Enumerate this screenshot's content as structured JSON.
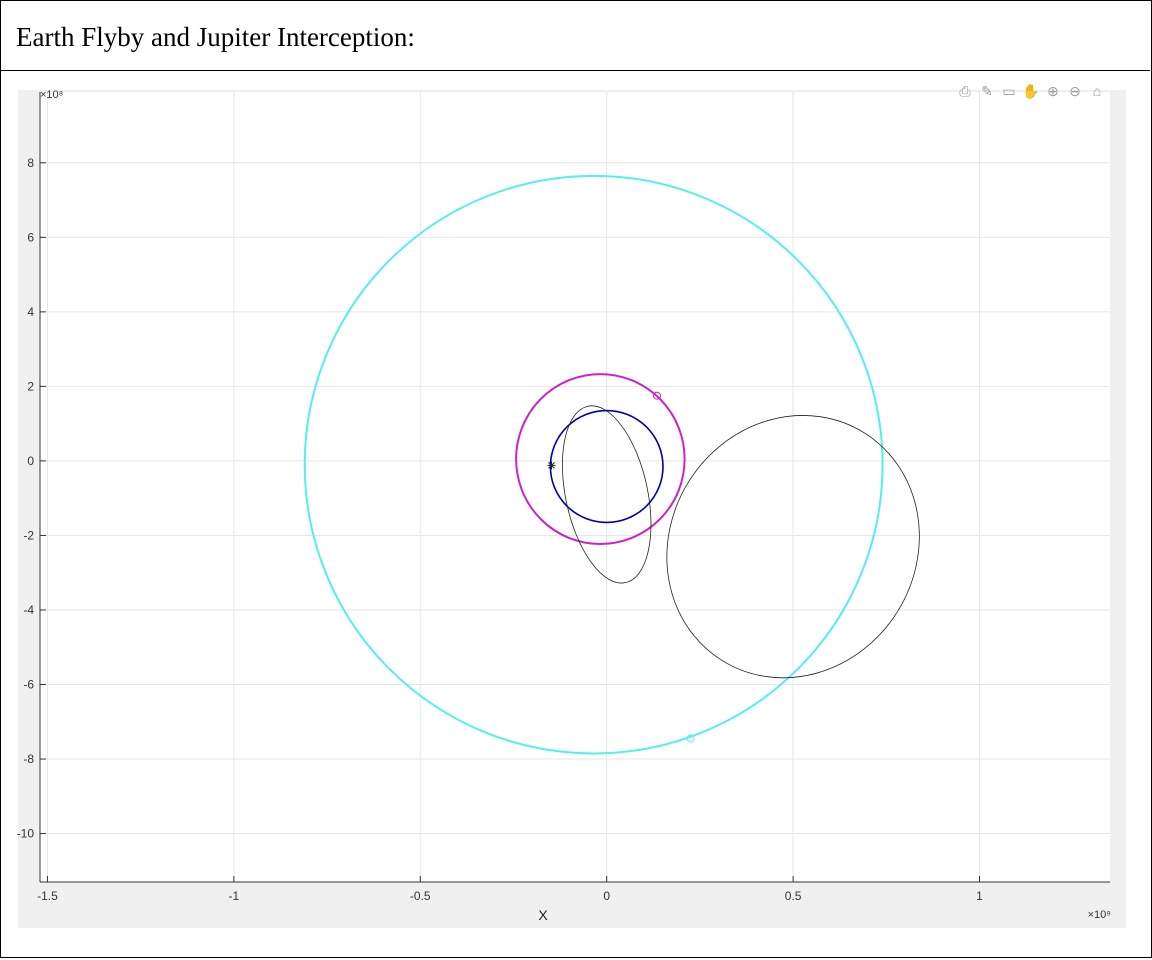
{
  "page": {
    "title": "Earth Flyby and Jupiter Interception:"
  },
  "toolbar": {
    "icons": [
      "export-icon",
      "brush-icon",
      "datatip-icon",
      "pan-icon",
      "zoom-in-icon",
      "zoom-out-icon",
      "home-icon"
    ]
  },
  "chart_data": {
    "type": "line",
    "title": "",
    "xlabel": "X",
    "ylabel": "",
    "x_exponent_label": "×10⁹",
    "y_exponent_label": "×10⁸",
    "xlim": [
      -1.52,
      1.35
    ],
    "ylim": [
      -11.3,
      9.9
    ],
    "x_ticks": [
      -1.5,
      -1,
      -0.5,
      0,
      0.5,
      1
    ],
    "x_tick_labels": [
      "-1.5",
      "-1",
      "-0.5",
      "0",
      "0.5",
      "1"
    ],
    "y_ticks": [
      -10,
      -8,
      -6,
      -4,
      -2,
      0,
      2,
      4,
      6,
      8
    ],
    "y_tick_labels": [
      "-10",
      "-8",
      "-6",
      "-4",
      "-2",
      "0",
      "2",
      "4",
      "6",
      "8"
    ],
    "grid": true,
    "colors": {
      "earth": "#0000aa",
      "mars": "#cc22cc",
      "jupiter": "#55eeee",
      "trajectory": "#222222"
    },
    "series": [
      {
        "kind": "circle",
        "color_key": "earth",
        "cx": 0.0,
        "cy": -0.15,
        "rx": 0.151,
        "ry": 1.5
      },
      {
        "kind": "circle",
        "color_key": "mars",
        "cx": -0.017,
        "cy": 0.05,
        "rx": 0.226,
        "ry": 2.28
      },
      {
        "kind": "circle",
        "color_key": "jupiter",
        "cx": -0.035,
        "cy": -0.1,
        "rx": 0.775,
        "ry": 7.75
      },
      {
        "kind": "orbit",
        "color_key": "trajectory",
        "cx": 0.0,
        "cy": -0.9,
        "rx": 0.11,
        "ry": 2.42,
        "rotation_deg": -12
      },
      {
        "kind": "orbit",
        "color_key": "trajectory",
        "cx": 0.5,
        "cy": -2.3,
        "rx": 0.36,
        "ry": 3.3,
        "rotation_deg": -58
      }
    ],
    "markers": [
      {
        "x": 0.135,
        "y": 1.75,
        "color_key": "mars",
        "marker": "o"
      },
      {
        "x": 0.225,
        "y": -7.45,
        "color_key": "jupiter",
        "marker": "o"
      },
      {
        "x": -0.148,
        "y": -0.12,
        "color_key": "trajectory",
        "marker": "*"
      }
    ]
  }
}
